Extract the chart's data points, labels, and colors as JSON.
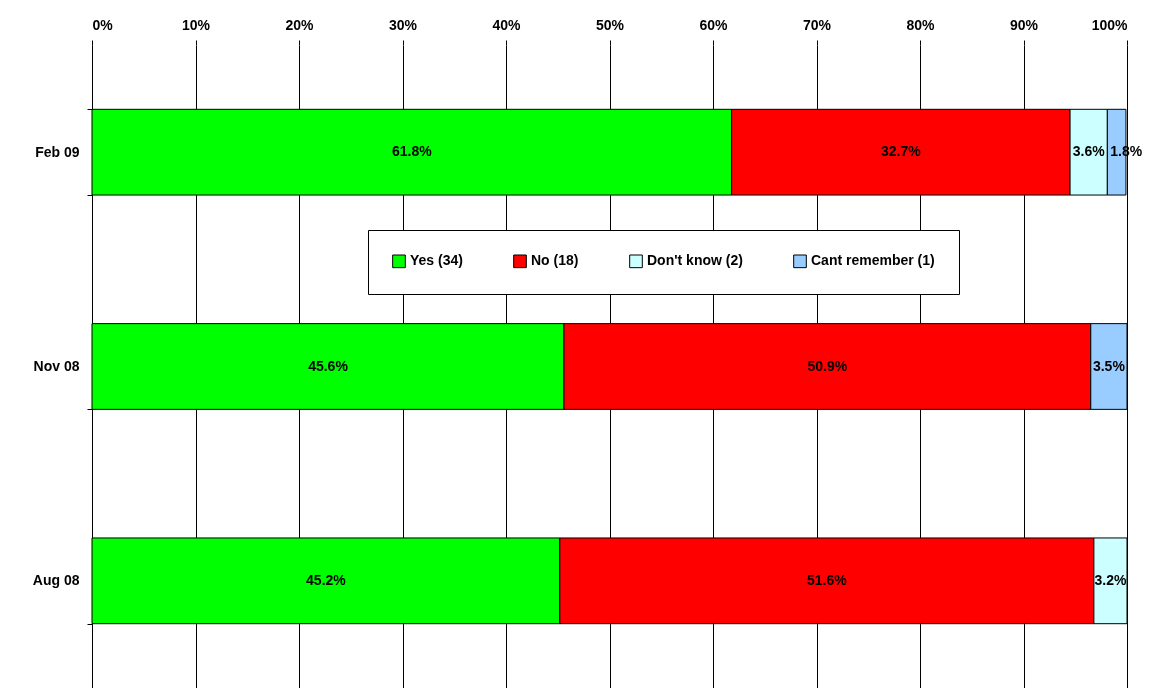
{
  "chart_data": {
    "type": "bar",
    "orientation": "horizontal",
    "stacked": true,
    "categories": [
      "Feb 09",
      "Nov 08",
      "Aug 08"
    ],
    "series": [
      {
        "name": "Yes (34)",
        "color": "#00ff00",
        "values": [
          61.8,
          45.6,
          45.2
        ],
        "value_labels": [
          "61.8%",
          "45.6%",
          "45.2%"
        ]
      },
      {
        "name": "No (18)",
        "color": "#ff0000",
        "values": [
          32.7,
          50.9,
          51.6
        ],
        "value_labels": [
          "32.7%",
          "50.9%",
          "51.6%"
        ]
      },
      {
        "name": "Don't know (2)",
        "color": "#ccffff",
        "values": [
          3.6,
          null,
          3.2
        ],
        "value_labels": [
          "3.6%",
          null,
          "3.2%"
        ]
      },
      {
        "name": "Cant remember (1)",
        "color": "#99ccff",
        "values": [
          1.8,
          3.5,
          null
        ],
        "value_labels": [
          "1.8%",
          "3.5%",
          null
        ]
      }
    ],
    "xlim": [
      0,
      100
    ],
    "xticks": [
      {
        "value": 0,
        "label": "0%"
      },
      {
        "value": 10,
        "label": "10%"
      },
      {
        "value": 20,
        "label": "20%"
      },
      {
        "value": 30,
        "label": "30%"
      },
      {
        "value": 40,
        "label": "40%"
      },
      {
        "value": 50,
        "label": "50%"
      },
      {
        "value": 60,
        "label": "60%"
      },
      {
        "value": 70,
        "label": "70%"
      },
      {
        "value": 80,
        "label": "80%"
      },
      {
        "value": 90,
        "label": "90%"
      },
      {
        "value": 100,
        "label": "100%"
      }
    ],
    "grid": "x",
    "legend": "top"
  }
}
